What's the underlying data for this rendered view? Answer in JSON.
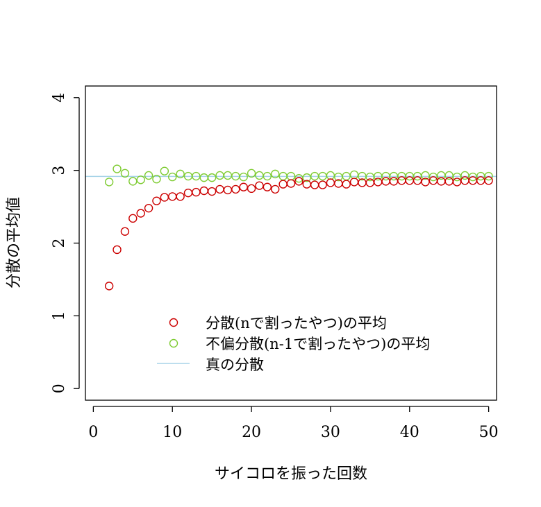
{
  "chart_data": {
    "type": "scatter",
    "title": "",
    "xlabel": "サイコロを振った回数",
    "ylabel": "分散の平均値",
    "xlim": [
      -1,
      51
    ],
    "ylim": [
      -0.16,
      4.16
    ],
    "x_ticks": [
      "0",
      "10",
      "20",
      "30",
      "40",
      "50"
    ],
    "y_ticks": [
      "0",
      "1",
      "2",
      "3",
      "4"
    ],
    "legend_position": "bottom-center",
    "series": [
      {
        "name": "分散(nで割ったやつ)の平均",
        "marker": "open-circle",
        "color": "#cc0000",
        "x": [
          2,
          3,
          4,
          5,
          6,
          7,
          8,
          9,
          10,
          11,
          12,
          13,
          14,
          15,
          16,
          17,
          18,
          19,
          20,
          21,
          22,
          23,
          24,
          25,
          26,
          27,
          28,
          29,
          30,
          31,
          32,
          33,
          34,
          35,
          36,
          37,
          38,
          39,
          40,
          41,
          42,
          43,
          44,
          45,
          46,
          47,
          48,
          49,
          50
        ],
        "values": [
          1.41,
          1.91,
          2.16,
          2.34,
          2.41,
          2.48,
          2.58,
          2.63,
          2.64,
          2.64,
          2.69,
          2.7,
          2.72,
          2.71,
          2.74,
          2.73,
          2.74,
          2.77,
          2.75,
          2.79,
          2.77,
          2.74,
          2.81,
          2.82,
          2.85,
          2.81,
          2.8,
          2.8,
          2.83,
          2.82,
          2.81,
          2.84,
          2.83,
          2.83,
          2.84,
          2.85,
          2.85,
          2.86,
          2.86,
          2.86,
          2.84,
          2.86,
          2.85,
          2.85,
          2.84,
          2.86,
          2.86,
          2.86,
          2.86
        ]
      },
      {
        "name": "不偏分散(n-1で割ったやつ)の平均",
        "marker": "open-circle",
        "color": "#7fcc33",
        "x": [
          2,
          3,
          4,
          5,
          6,
          7,
          8,
          9,
          10,
          11,
          12,
          13,
          14,
          15,
          16,
          17,
          18,
          19,
          20,
          21,
          22,
          23,
          24,
          25,
          26,
          27,
          28,
          29,
          30,
          31,
          32,
          33,
          34,
          35,
          36,
          37,
          38,
          39,
          40,
          41,
          42,
          43,
          44,
          45,
          46,
          47,
          48,
          49,
          50
        ],
        "values": [
          2.84,
          3.02,
          2.96,
          2.85,
          2.87,
          2.93,
          2.88,
          2.99,
          2.91,
          2.95,
          2.92,
          2.92,
          2.9,
          2.9,
          2.93,
          2.93,
          2.92,
          2.91,
          2.96,
          2.93,
          2.92,
          2.95,
          2.92,
          2.92,
          2.89,
          2.9,
          2.92,
          2.92,
          2.93,
          2.91,
          2.92,
          2.94,
          2.92,
          2.91,
          2.92,
          2.92,
          2.92,
          2.92,
          2.92,
          2.92,
          2.93,
          2.91,
          2.93,
          2.93,
          2.91,
          2.93,
          2.91,
          2.92,
          2.92
        ]
      },
      {
        "name": "真の分散",
        "marker": "line",
        "color": "#a7d3e8",
        "y": 2.9167
      }
    ]
  }
}
